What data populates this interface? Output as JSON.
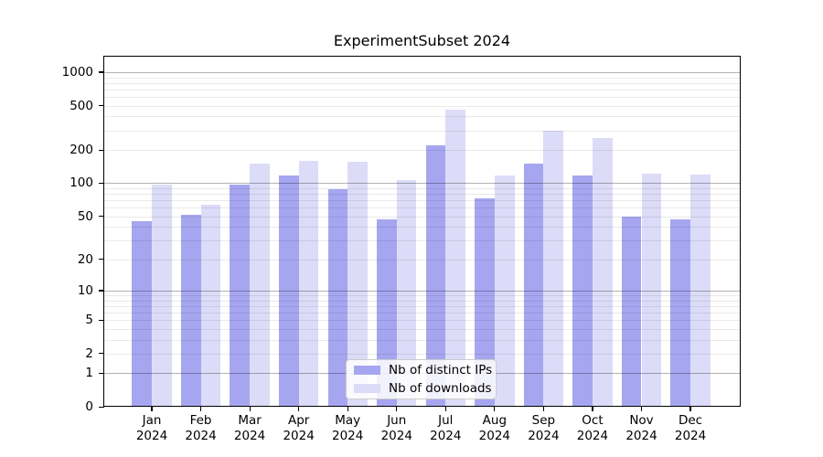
{
  "title": "ExperimentSubset 2024",
  "chart_data": {
    "type": "bar",
    "title": "ExperimentSubset 2024",
    "categories": [
      "Jan 2024",
      "Feb 2024",
      "Mar 2024",
      "Apr 2024",
      "May 2024",
      "Jun 2024",
      "Jul 2024",
      "Aug 2024",
      "Sep 2024",
      "Oct 2024",
      "Nov 2024",
      "Dec 2024"
    ],
    "series": [
      {
        "name": "Nb of distinct IPs",
        "color": "#a6a6f0",
        "values": [
          45,
          52,
          97,
          118,
          88,
          47,
          220,
          73,
          150,
          118,
          50,
          47
        ]
      },
      {
        "name": "Nb of downloads",
        "color": "#dcdcf8",
        "values": [
          97,
          64,
          150,
          160,
          155,
          106,
          460,
          117,
          300,
          255,
          122,
          120
        ]
      }
    ],
    "ylabel": "",
    "xlabel": "",
    "yscale": "log1p",
    "ytick_labels": [
      "0",
      "1",
      "2",
      "5",
      "10",
      "20",
      "50",
      "100",
      "200",
      "500",
      "1000"
    ],
    "ytick_values": [
      0,
      1,
      2,
      5,
      10,
      20,
      50,
      100,
      200,
      500,
      1000
    ],
    "ylim": [
      0,
      1400
    ],
    "grid": "horizontal, minor and major, drawn over bars",
    "legend_position": "lower center inside plot"
  },
  "colors": {
    "bar_dark": "#a6a6f0",
    "bar_light": "#dcdcf8",
    "grid_major": "#b3b3b3",
    "grid_minor": "#e9e9e9",
    "spine": "#000000",
    "background": "#ffffff"
  }
}
